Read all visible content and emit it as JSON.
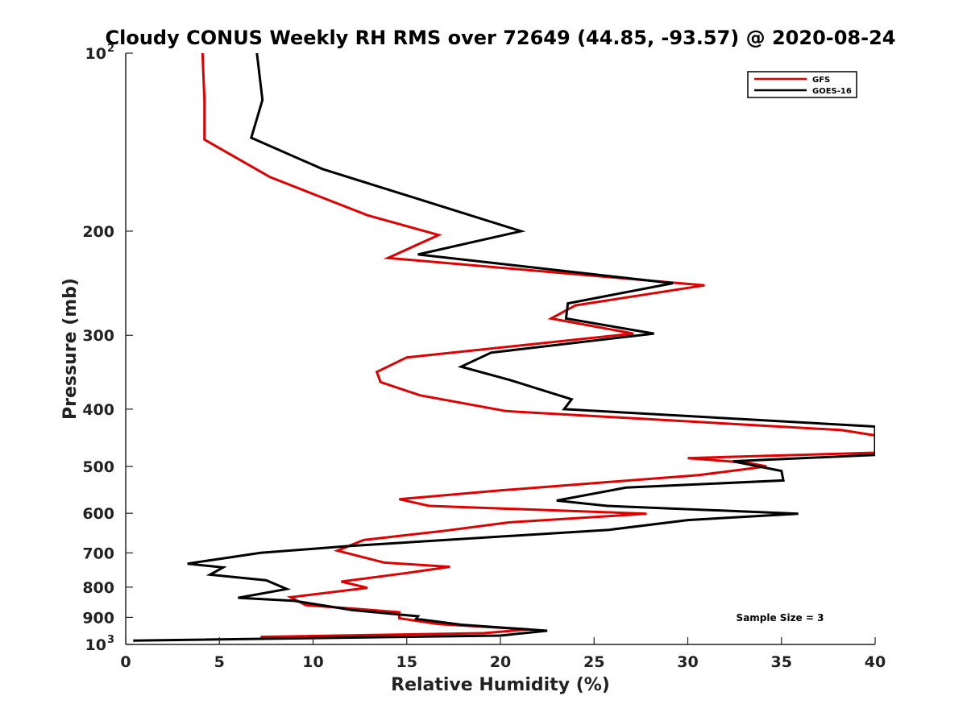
{
  "chart_data": {
    "type": "line",
    "title": "Cloudy CONUS Weekly RH RMS over 72649 (44.85, -93.57) @ 2020-08-24",
    "xlabel": "Relative Humidity (%)",
    "ylabel": "Pressure (mb)",
    "xlim": [
      0,
      40
    ],
    "ylim": [
      100,
      1000
    ],
    "y_scale": "log",
    "y_reversed": true,
    "x_ticks": [
      "0",
      "5",
      "10",
      "15",
      "20",
      "25",
      "30",
      "35",
      "40"
    ],
    "y_ticks": [
      {
        "value": 100,
        "label": "10",
        "exp": "2"
      },
      {
        "value": 200,
        "label": "200"
      },
      {
        "value": 300,
        "label": "300"
      },
      {
        "value": 400,
        "label": "400"
      },
      {
        "value": 500,
        "label": "500"
      },
      {
        "value": 600,
        "label": "600"
      },
      {
        "value": 700,
        "label": "700"
      },
      {
        "value": 800,
        "label": "800"
      },
      {
        "value": 900,
        "label": "900"
      },
      {
        "value": 1000,
        "label": "10",
        "exp": "3"
      }
    ],
    "legend_position": "top-right",
    "annotation": "Sample Size = 3",
    "series": [
      {
        "name": "GFS",
        "color": "#dd0000",
        "points": [
          [
            4.1,
            100
          ],
          [
            4.2,
            120
          ],
          [
            4.2,
            140
          ],
          [
            7.7,
            162
          ],
          [
            10.2,
            174
          ],
          [
            12.9,
            188
          ],
          [
            16.7,
            203
          ],
          [
            14.0,
            222
          ],
          [
            30.9,
            247
          ],
          [
            24.0,
            267
          ],
          [
            22.7,
            281
          ],
          [
            27.1,
            298
          ],
          [
            15.0,
            327
          ],
          [
            13.4,
            346
          ],
          [
            13.6,
            360
          ],
          [
            15.7,
            379
          ],
          [
            20.3,
            403
          ],
          [
            38.2,
            434
          ],
          [
            40.0,
            443
          ],
          [
            40.0,
            474
          ],
          [
            30.0,
            484
          ],
          [
            33.2,
            493
          ],
          [
            34.2,
            500
          ],
          [
            30.6,
            517
          ],
          [
            20.0,
            549
          ],
          [
            14.6,
            568
          ],
          [
            16.2,
            583
          ],
          [
            27.8,
            601
          ],
          [
            20.4,
            622
          ],
          [
            17.1,
            642
          ],
          [
            12.7,
            666
          ],
          [
            11.3,
            694
          ],
          [
            13.8,
            727
          ],
          [
            17.3,
            739
          ],
          [
            15.0,
            757
          ],
          [
            11.5,
            783
          ],
          [
            12.9,
            802
          ],
          [
            8.8,
            832
          ],
          [
            9.6,
            858
          ],
          [
            12.2,
            870
          ],
          [
            14.6,
            882
          ],
          [
            14.6,
            903
          ],
          [
            16.7,
            924
          ],
          [
            21.5,
            943
          ],
          [
            19.1,
            957
          ],
          [
            7.2,
            971
          ]
        ]
      },
      {
        "name": "GOES-16",
        "color": "#000000",
        "points": [
          [
            7.0,
            100
          ],
          [
            7.3,
            120
          ],
          [
            6.7,
            139
          ],
          [
            10.5,
            157
          ],
          [
            14.5,
            172
          ],
          [
            21.1,
            200
          ],
          [
            15.6,
            219
          ],
          [
            29.2,
            245
          ],
          [
            23.6,
            265
          ],
          [
            23.5,
            281
          ],
          [
            28.2,
            298
          ],
          [
            19.5,
            321
          ],
          [
            17.9,
            339
          ],
          [
            20.5,
            357
          ],
          [
            23.8,
            385
          ],
          [
            23.4,
            400
          ],
          [
            40.0,
            428
          ],
          [
            40.0,
            478
          ],
          [
            32.4,
            490
          ],
          [
            35.0,
            509
          ],
          [
            35.1,
            528
          ],
          [
            26.7,
            543
          ],
          [
            23.0,
            571
          ],
          [
            25.7,
            583
          ],
          [
            35.9,
            601
          ],
          [
            30.0,
            616
          ],
          [
            25.8,
            640
          ],
          [
            11.8,
            682
          ],
          [
            7.2,
            700
          ],
          [
            3.3,
            730
          ],
          [
            5.2,
            741
          ],
          [
            4.5,
            762
          ],
          [
            7.5,
            779
          ],
          [
            8.6,
            806
          ],
          [
            6.0,
            834
          ],
          [
            9.0,
            844
          ],
          [
            12.1,
            875
          ],
          [
            15.6,
            896
          ],
          [
            15.5,
            905
          ],
          [
            17.9,
            926
          ],
          [
            22.5,
            948
          ],
          [
            20.0,
            966
          ],
          [
            0.4,
            985
          ]
        ]
      }
    ]
  }
}
